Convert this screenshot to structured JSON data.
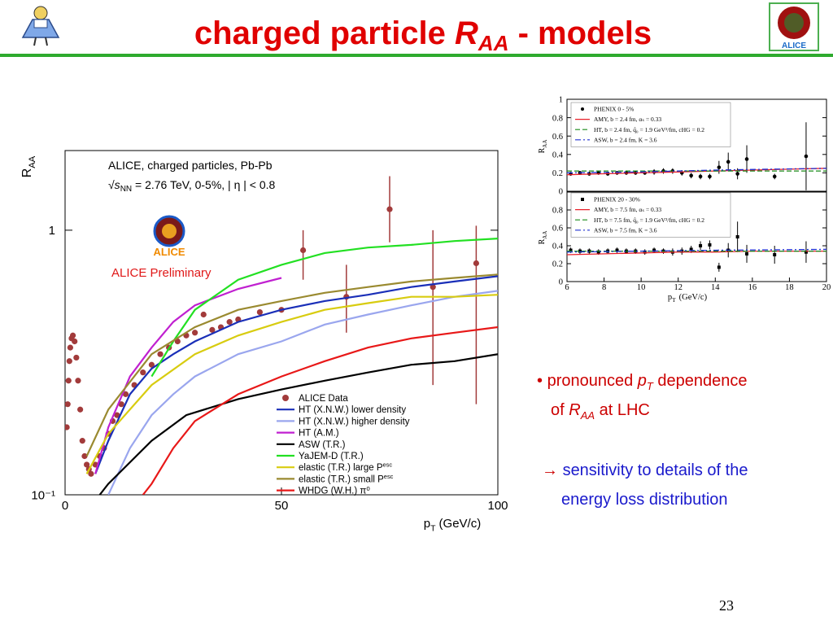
{
  "title": {
    "pre": "charged particle ",
    "R": "R",
    "sub": "AA",
    "post": " - models"
  },
  "logo_text": "ALICE",
  "bullets": [
    {
      "marker": "•",
      "pre": "pronounced ",
      "p": "p",
      "p_sub": "T",
      "mid": " dependence",
      "line2_pre": "of ",
      "R": "R",
      "R_sub": "AA",
      "post": " at LHC"
    },
    {
      "marker": "→",
      "line1": "sensitivity to details of the",
      "line2": "energy loss distribution"
    }
  ],
  "page_number": "23",
  "chart_data": [
    {
      "type": "line",
      "ylabel": "R",
      "ylabel_sub": "AA",
      "xlabel": "p",
      "xlabel_sub": "T",
      "xlabel_unit": "(GeV/c)",
      "xlim": [
        0,
        100
      ],
      "xticks": [
        0,
        50,
        100
      ],
      "ylim": [
        0.1,
        2
      ],
      "log_y": true,
      "yticks": [
        {
          "value": 0.1,
          "label": "10⁻¹"
        },
        1
      ],
      "annotations": {
        "line1": "ALICE, charged particles, Pb-Pb",
        "sqrt": "√s",
        "sqrt_sub": "NN",
        "line2": " = 2.76 TeV, 0-5%, | η | < 0.8",
        "preliminary": "ALICE Preliminary",
        "logo": "ALICE"
      },
      "series": [
        {
          "name": "ALICE Data",
          "color": "#a23b3b",
          "marker": "circle",
          "x": [
            0.4,
            0.6,
            0.8,
            1.0,
            1.2,
            1.5,
            1.8,
            2.2,
            2.6,
            3.0,
            3.5,
            4,
            4.5,
            5,
            5.5,
            6,
            7,
            8,
            9,
            10,
            11,
            12,
            13,
            14,
            16,
            18,
            20,
            22,
            24,
            26,
            28,
            30,
            32,
            34,
            36,
            38,
            40,
            45,
            50,
            55,
            65,
            75,
            85,
            95
          ],
          "values": [
            0.18,
            0.22,
            0.27,
            0.32,
            0.36,
            0.39,
            0.4,
            0.38,
            0.33,
            0.27,
            0.21,
            0.16,
            0.14,
            0.13,
            0.125,
            0.12,
            0.13,
            0.14,
            0.15,
            0.17,
            0.19,
            0.2,
            0.22,
            0.24,
            0.26,
            0.29,
            0.31,
            0.34,
            0.36,
            0.38,
            0.4,
            0.41,
            0.48,
            0.42,
            0.43,
            0.45,
            0.46,
            0.49,
            0.5,
            0.84,
            0.56,
            1.2,
            0.61,
            0.75
          ],
          "err_low": [
            null,
            null,
            null,
            null,
            null,
            null,
            null,
            null,
            null,
            null,
            null,
            null,
            null,
            null,
            null,
            null,
            null,
            null,
            null,
            null,
            null,
            null,
            null,
            null,
            null,
            null,
            null,
            null,
            null,
            null,
            null,
            null,
            null,
            null,
            null,
            null,
            null,
            null,
            null,
            0.65,
            0.41,
            0.9,
            0.26,
            0.22
          ],
          "err_high": [
            null,
            null,
            null,
            null,
            null,
            null,
            null,
            null,
            null,
            null,
            null,
            null,
            null,
            null,
            null,
            null,
            null,
            null,
            null,
            null,
            null,
            null,
            null,
            null,
            null,
            null,
            null,
            null,
            null,
            null,
            null,
            null,
            null,
            null,
            null,
            null,
            null,
            null,
            null,
            1.0,
            0.74,
            1.6,
            1.0,
            1.04
          ]
        },
        {
          "name": "HT (X.N.W.) lower density",
          "color": "#1a2fb8",
          "x": [
            7,
            10,
            15,
            20,
            25,
            30,
            40,
            50,
            60,
            70,
            80,
            90,
            100
          ],
          "values": [
            0.12,
            0.16,
            0.24,
            0.3,
            0.34,
            0.38,
            0.45,
            0.5,
            0.54,
            0.57,
            0.61,
            0.64,
            0.67
          ]
        },
        {
          "name": "HT (X.N.W.) higher density",
          "color": "#9aa6ee",
          "x": [
            10,
            15,
            20,
            25,
            30,
            40,
            50,
            60,
            70,
            80,
            90,
            100
          ],
          "values": [
            0.1,
            0.15,
            0.2,
            0.24,
            0.28,
            0.34,
            0.38,
            0.44,
            0.48,
            0.52,
            0.56,
            0.59
          ]
        },
        {
          "name": "HT (A.M.)",
          "color": "#c020d0",
          "x": [
            7,
            10,
            15,
            20,
            25,
            30,
            40,
            50
          ],
          "values": [
            0.12,
            0.18,
            0.28,
            0.36,
            0.45,
            0.52,
            0.6,
            0.66
          ]
        },
        {
          "name": "ASW (T.R.)",
          "color": "#000000",
          "x": [
            8,
            10,
            20,
            28,
            40,
            50,
            60,
            70,
            80,
            90,
            100
          ],
          "values": [
            0.1,
            0.11,
            0.16,
            0.2,
            0.23,
            0.25,
            0.27,
            0.29,
            0.31,
            0.32,
            0.34
          ]
        },
        {
          "name": "YaJEM-D (T.R.)",
          "color": "#22e022",
          "x": [
            20,
            25,
            30,
            40,
            50,
            60,
            70,
            80,
            90,
            100
          ],
          "values": [
            0.28,
            0.38,
            0.5,
            0.65,
            0.74,
            0.82,
            0.86,
            0.88,
            0.91,
            0.93
          ]
        },
        {
          "name": "elastic (T.R.) large P",
          "name_sub": "esc",
          "color": "#d8cc10",
          "x": [
            5,
            10,
            20,
            30,
            40,
            50,
            60,
            70,
            80,
            90,
            100
          ],
          "values": [
            0.12,
            0.17,
            0.26,
            0.34,
            0.4,
            0.45,
            0.5,
            0.53,
            0.56,
            0.56,
            0.57
          ]
        },
        {
          "name": "elastic (T.R.) small P",
          "name_sub": "esc",
          "color": "#9a8a30",
          "x": [
            5,
            10,
            20,
            30,
            40,
            50,
            60,
            70,
            80,
            90,
            100
          ],
          "values": [
            0.14,
            0.21,
            0.34,
            0.43,
            0.5,
            0.54,
            0.58,
            0.61,
            0.64,
            0.66,
            0.68
          ]
        },
        {
          "name": "WHDG (W.H.) π⁰",
          "color": "#e81818",
          "x": [
            18,
            20,
            25,
            30,
            40,
            50,
            60,
            70,
            80,
            90,
            100
          ],
          "values": [
            0.1,
            0.11,
            0.15,
            0.19,
            0.24,
            0.28,
            0.32,
            0.36,
            0.39,
            0.41,
            0.43
          ]
        }
      ]
    },
    {
      "type": "line",
      "ylabel": "R",
      "ylabel_sub": "AA",
      "xlim": [
        6,
        20
      ],
      "ylim": [
        0,
        1
      ],
      "yticks": [
        0,
        0.2,
        0.4,
        0.6,
        0.8,
        1
      ],
      "series": [
        {
          "name": "PHENIX 0 - 5%",
          "color": "#000000",
          "marker": "circle",
          "x": [
            6.2,
            6.7,
            7.2,
            7.7,
            8.2,
            8.7,
            9.2,
            9.7,
            10.2,
            10.7,
            11.2,
            11.7,
            12.2,
            12.7,
            13.2,
            13.7,
            14.2,
            14.7,
            15.2,
            15.7,
            17.2,
            18.9
          ],
          "values": [
            0.19,
            0.2,
            0.19,
            0.2,
            0.19,
            0.2,
            0.2,
            0.2,
            0.2,
            0.21,
            0.22,
            0.22,
            0.2,
            0.17,
            0.16,
            0.16,
            0.26,
            0.32,
            0.19,
            0.35,
            0.16,
            0.38
          ],
          "errors": [
            0.02,
            0.02,
            0.02,
            0.02,
            0.02,
            0.02,
            0.02,
            0.02,
            0.02,
            0.03,
            0.03,
            0.03,
            0.03,
            0.03,
            0.03,
            0.03,
            0.07,
            0.1,
            0.06,
            0.15,
            0.03,
            0.37
          ]
        },
        {
          "name": "AMY, b = 2.4 fm, αₛ = 0.33",
          "color": "#e8202a",
          "x": [
            6,
            8,
            10,
            12,
            14,
            16,
            18,
            20
          ],
          "values": [
            0.18,
            0.19,
            0.2,
            0.21,
            0.22,
            0.23,
            0.24,
            0.25
          ]
        },
        {
          "name": "HT, b = 2.4 fm, q̂₀ = 1.9 GeV²/fm, cHG = 0.2",
          "color": "#1a8a1a",
          "dash": "dashed",
          "x": [
            6,
            20
          ],
          "values": [
            0.22,
            0.22
          ]
        },
        {
          "name": "ASW, b = 2.4 fm, K = 3.6",
          "color": "#2030d0",
          "dash": "dashdot",
          "x": [
            6,
            10,
            14,
            20
          ],
          "values": [
            0.2,
            0.21,
            0.23,
            0.25
          ]
        }
      ]
    },
    {
      "type": "line",
      "ylabel": "R",
      "ylabel_sub": "AA",
      "xlabel": "p",
      "xlabel_sub": "T",
      "xlabel_unit": "(GeV/c)",
      "xlim": [
        6,
        20
      ],
      "xticks": [
        6,
        8,
        10,
        12,
        14,
        16,
        18,
        20
      ],
      "ylim": [
        0,
        1
      ],
      "yticks": [
        0,
        0.2,
        0.4,
        0.6,
        0.8
      ],
      "series": [
        {
          "name": "PHENIX 20 - 30%",
          "color": "#000000",
          "marker": "square",
          "x": [
            6.2,
            6.7,
            7.2,
            7.7,
            8.2,
            8.7,
            9.2,
            9.7,
            10.2,
            10.7,
            11.2,
            11.7,
            12.2,
            12.7,
            13.2,
            13.7,
            14.2,
            14.7,
            15.2,
            15.7,
            17.2,
            18.9
          ],
          "values": [
            0.35,
            0.34,
            0.34,
            0.33,
            0.34,
            0.35,
            0.34,
            0.34,
            0.33,
            0.35,
            0.34,
            0.33,
            0.34,
            0.36,
            0.4,
            0.41,
            0.16,
            0.35,
            0.5,
            0.31,
            0.3,
            0.33
          ],
          "errors": [
            0.03,
            0.03,
            0.03,
            0.03,
            0.03,
            0.03,
            0.03,
            0.03,
            0.03,
            0.03,
            0.03,
            0.04,
            0.04,
            0.04,
            0.05,
            0.05,
            0.05,
            0.08,
            0.17,
            0.1,
            0.1,
            0.12
          ]
        },
        {
          "name": "AMY, b = 7.5 fm, αₛ = 0.33",
          "color": "#e8202a",
          "x": [
            6,
            8,
            10,
            12,
            14,
            16,
            18,
            20
          ],
          "values": [
            0.3,
            0.31,
            0.32,
            0.33,
            0.33,
            0.34,
            0.34,
            0.34
          ]
        },
        {
          "name": "HT, b = 7.5 fm, q̂₀ = 1.9 GeV²/fm, cHG = 0.2",
          "color": "#1a8a1a",
          "dash": "dashed",
          "x": [
            6,
            20
          ],
          "values": [
            0.34,
            0.34
          ]
        },
        {
          "name": "ASW, b = 7.5 fm, K = 3.6",
          "color": "#2030d0",
          "dash": "dashdot",
          "x": [
            6,
            10,
            14,
            20
          ],
          "values": [
            0.33,
            0.34,
            0.35,
            0.36
          ]
        }
      ]
    }
  ]
}
